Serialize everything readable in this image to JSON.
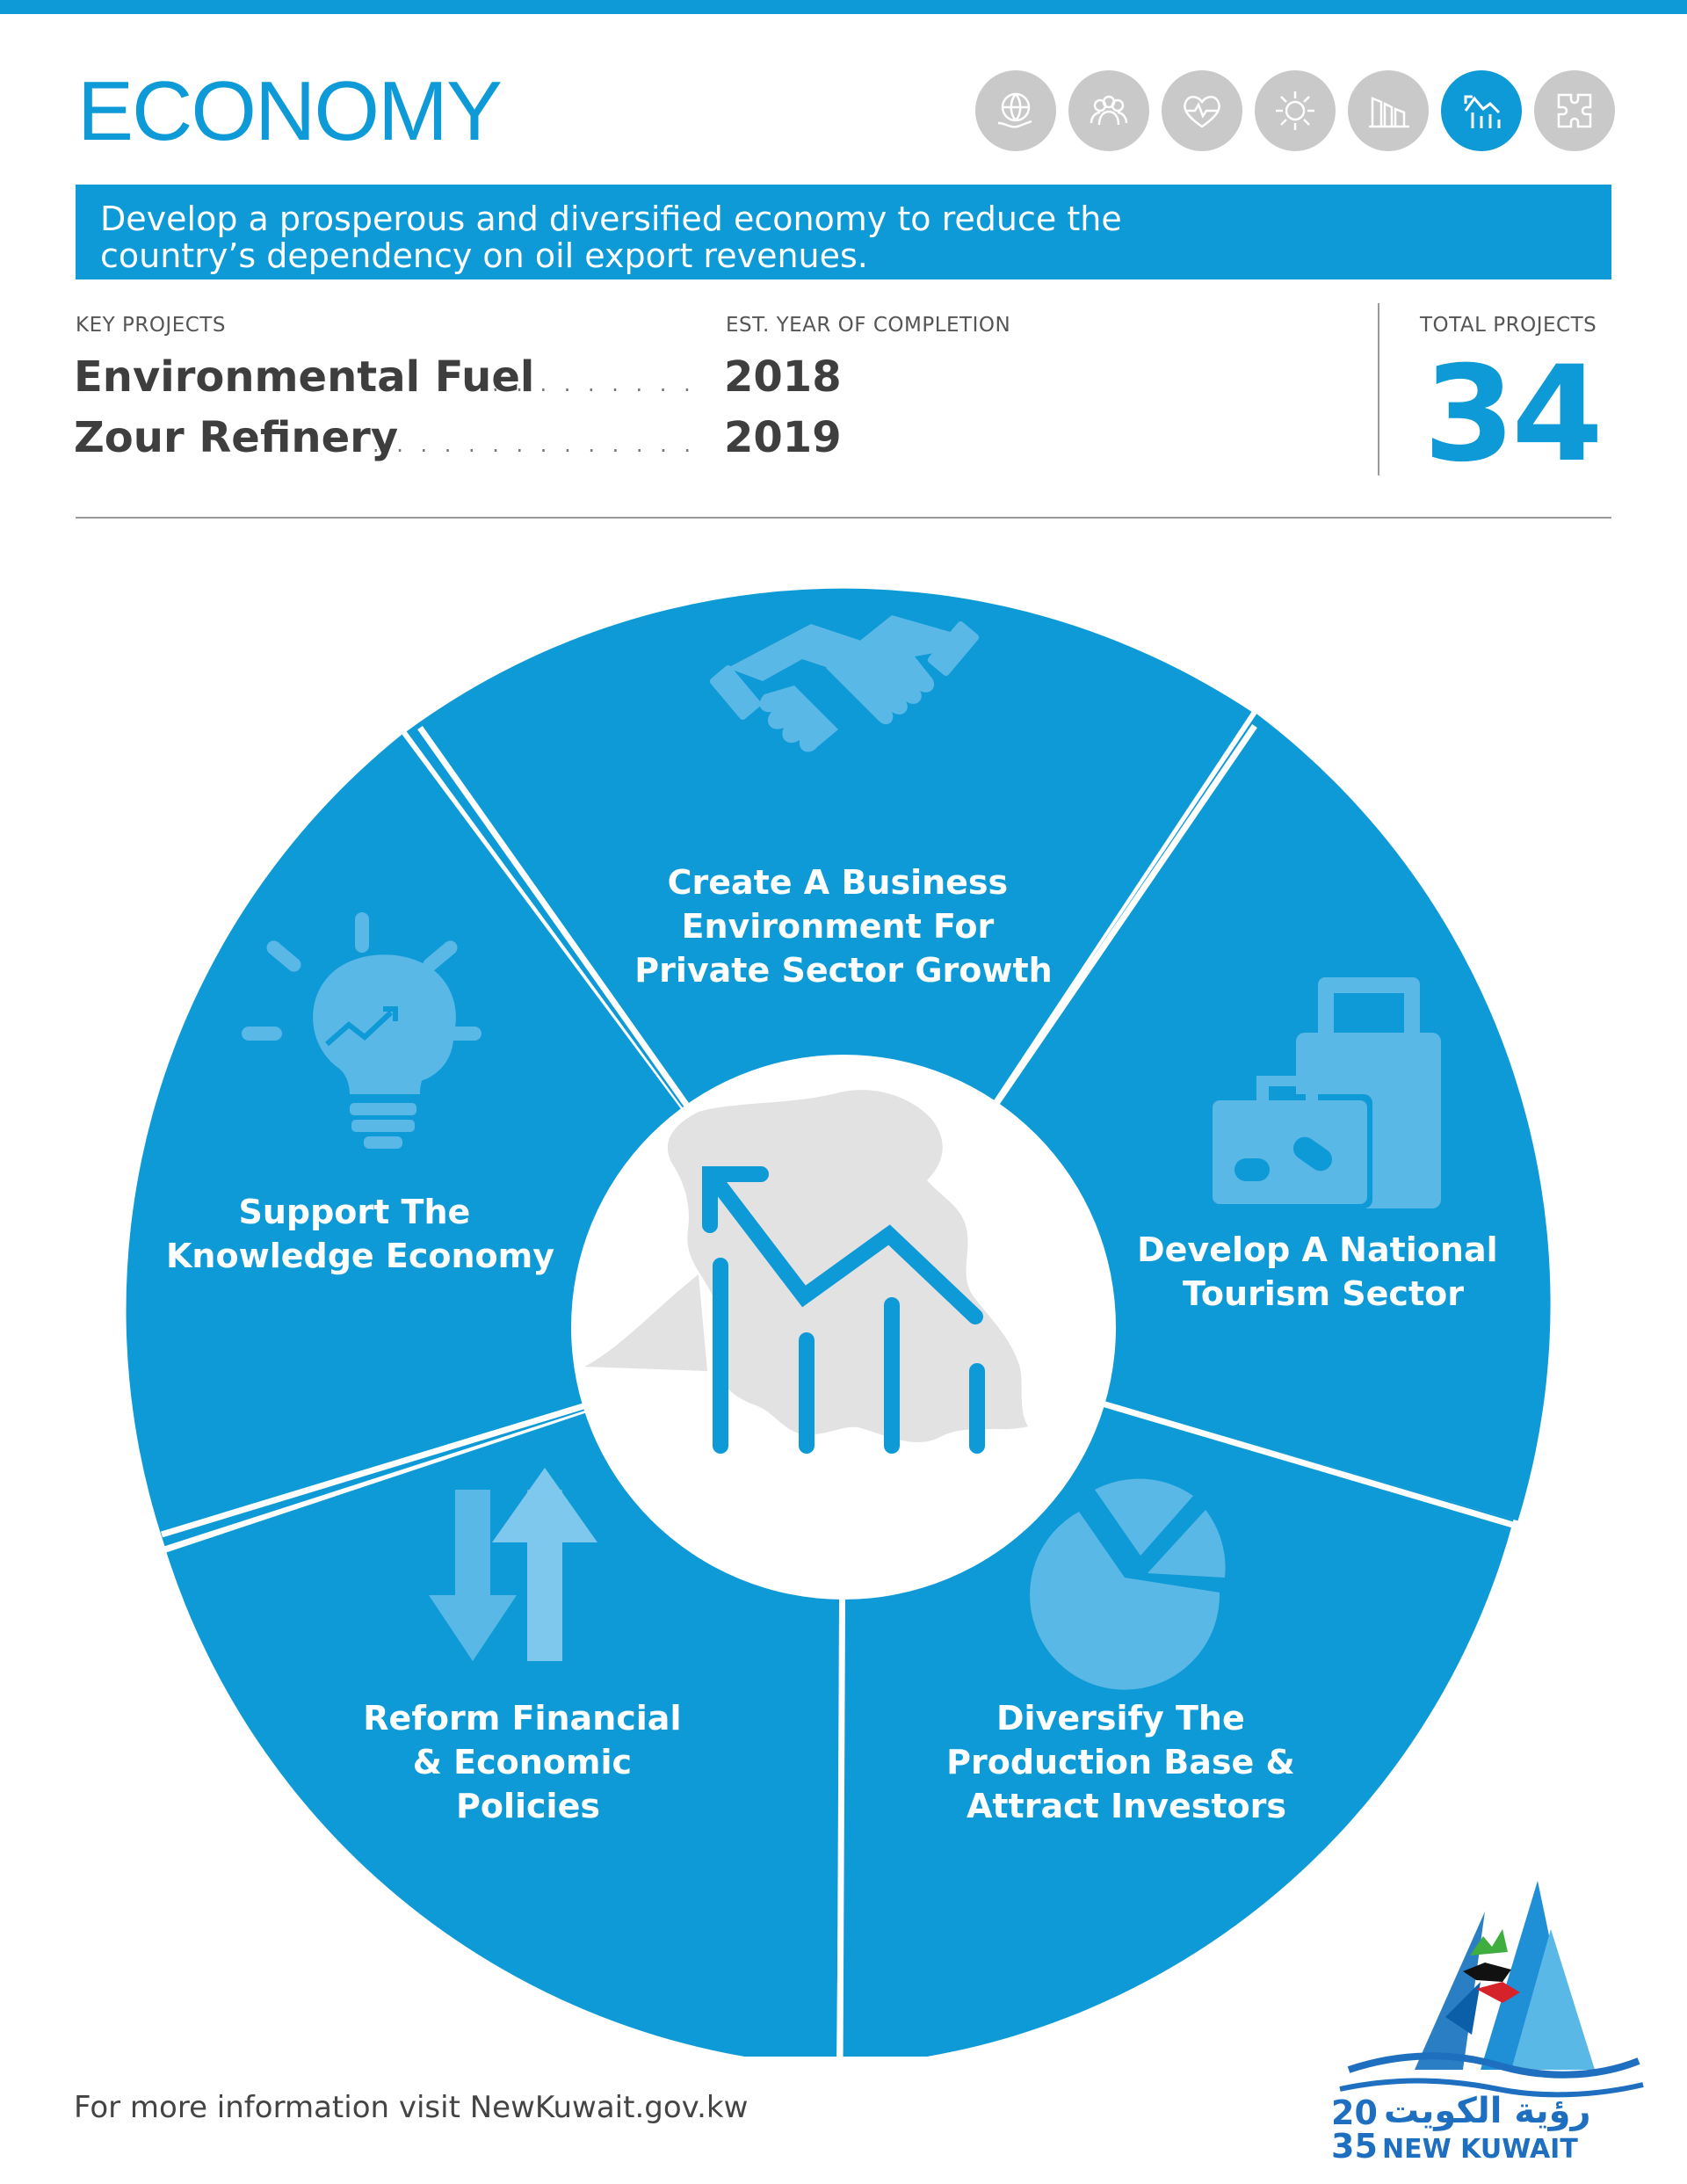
{
  "header": {
    "title": "ECONOMY"
  },
  "category_icons": [
    "globe-hand-icon",
    "people-icon",
    "heart-pulse-icon",
    "sun-icon",
    "factory-icon",
    "bar-chart-icon",
    "puzzle-icon"
  ],
  "active_icon": "bar-chart-icon",
  "banner": {
    "text": "Develop a prosperous and diversified economy to reduce the country’s dependency on oil export revenues."
  },
  "projects": {
    "key_label": "KEY PROJECTS",
    "year_label": "EST. YEAR OF COMPLETION",
    "total_label": "TOTAL PROJECTS",
    "total": "34",
    "items": [
      {
        "name": "Environmental Fuel",
        "year": "2018"
      },
      {
        "name": "Zour Refinery",
        "year": "2019"
      }
    ]
  },
  "segments": [
    {
      "icon": "handshake-icon",
      "lines": [
        "Create A Business",
        "Environment For",
        "Private Sector Growth"
      ]
    },
    {
      "icon": "luggage-icon",
      "lines": [
        "Develop A National",
        "Tourism Sector"
      ]
    },
    {
      "icon": "pie-chart-icon",
      "lines": [
        "Diversify The",
        "Production Base &",
        "Attract Investors"
      ]
    },
    {
      "icon": "arrows-icon",
      "lines": [
        "Reform Financial",
        "& Economic",
        "Policies"
      ]
    },
    {
      "icon": "lightbulb-icon",
      "lines": [
        "Support The",
        "Knowledge Economy"
      ]
    }
  ],
  "center_icon": "declining-chart-icon",
  "footer": {
    "text": "For more information visit ",
    "link": "NewKuwait.gov.kw"
  },
  "colors": {
    "accent": "#0e9ad7",
    "segment_icon": "#5ab8e6",
    "map_gray": "#e2e2e2"
  }
}
